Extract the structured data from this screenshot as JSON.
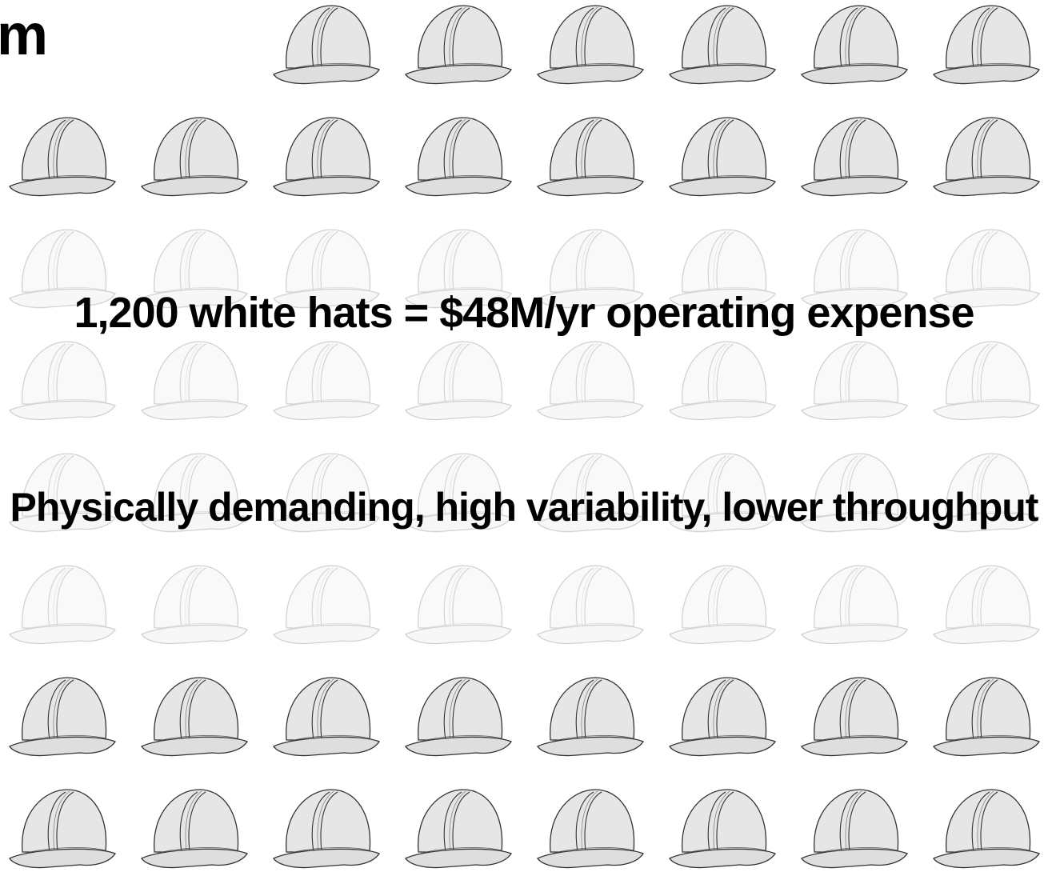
{
  "title_fragment": "m",
  "statements": [
    "1,200 white hats = $48M/yr operating expense",
    "Physically demanding, high variability, lower throughput"
  ]
}
